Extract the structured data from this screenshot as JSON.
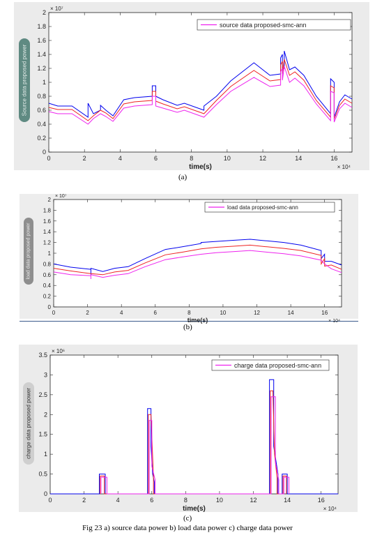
{
  "figure_caption": "Fig 23 a) source data power b) load data power c) charge data power",
  "chart_data": [
    {
      "type": "line",
      "panel_label": "(a)",
      "xlabel": "time(s)",
      "ylabel": "Source data proposed power",
      "x_exponent": "× 10⁴",
      "y_exponent": "× 10⁷",
      "xlim": [
        0,
        17
      ],
      "ylim": [
        0,
        2
      ],
      "xticks": [
        0,
        2,
        4,
        6,
        8,
        10,
        12,
        14,
        16
      ],
      "yticks": [
        0,
        0.2,
        0.4,
        0.6,
        0.8,
        1,
        1.2,
        1.4,
        1.6,
        1.8,
        2
      ],
      "legend": [
        "source data proposed-smc-ann"
      ],
      "legend_position": "top-right",
      "series": [
        {
          "name": "",
          "color": "#0000ee",
          "x": [
            0,
            0.5,
            1.3,
            2.2,
            2.2,
            2.5,
            2.9,
            2.9,
            3.2,
            3.6,
            4.2,
            4.8,
            5.8,
            5.8,
            6.0,
            6.0,
            6.4,
            7.2,
            7.6,
            8.7,
            8.7,
            9.4,
            10.2,
            11.5,
            12.4,
            13.0,
            13.0,
            13.1,
            13.1,
            13.2,
            13.2,
            13.5,
            13.8,
            14.3,
            15.0,
            15.8,
            15.8,
            16.0,
            16.0,
            16.3,
            16.6,
            17
          ],
          "y": [
            0.7,
            0.66,
            0.66,
            0.5,
            0.7,
            0.55,
            0.6,
            0.67,
            0.6,
            0.52,
            0.75,
            0.78,
            0.8,
            0.95,
            0.95,
            0.8,
            0.75,
            0.67,
            0.7,
            0.6,
            0.66,
            0.8,
            1.02,
            1.28,
            1.1,
            1.12,
            1.35,
            1.4,
            1.2,
            1.2,
            1.45,
            1.18,
            1.22,
            1.1,
            0.8,
            0.55,
            1.05,
            1.0,
            0.5,
            0.72,
            0.82,
            0.76
          ]
        },
        {
          "name": "",
          "color": "#ee2222",
          "x": [
            0,
            0.5,
            1.3,
            2.2,
            2.5,
            2.9,
            3.2,
            3.6,
            4.2,
            4.8,
            5.8,
            5.8,
            6.0,
            6.0,
            6.4,
            7.2,
            7.6,
            8.7,
            9.4,
            10.2,
            11.5,
            12.4,
            13.0,
            13.0,
            13.1,
            13.1,
            13.2,
            13.5,
            13.8,
            14.3,
            15.0,
            15.8,
            15.8,
            16.0,
            16.0,
            16.3,
            16.6,
            17
          ],
          "y": [
            0.64,
            0.61,
            0.61,
            0.45,
            0.52,
            0.6,
            0.56,
            0.48,
            0.69,
            0.72,
            0.74,
            0.87,
            0.87,
            0.73,
            0.69,
            0.62,
            0.65,
            0.55,
            0.74,
            0.94,
            1.17,
            1.02,
            1.04,
            1.25,
            1.3,
            1.12,
            1.33,
            1.1,
            1.15,
            1.03,
            0.74,
            0.5,
            0.95,
            0.92,
            0.47,
            0.67,
            0.76,
            0.7
          ]
        },
        {
          "name": "",
          "color": "#ee22ee",
          "x": [
            0,
            0.5,
            1.3,
            2.2,
            2.5,
            2.9,
            3.2,
            3.6,
            4.2,
            4.8,
            5.8,
            5.8,
            6.0,
            6.0,
            6.4,
            7.2,
            7.6,
            8.7,
            9.4,
            10.2,
            11.5,
            12.4,
            13.0,
            13.0,
            13.1,
            13.1,
            13.2,
            13.5,
            13.8,
            14.3,
            15.0,
            15.8,
            15.8,
            16.0,
            16.0,
            16.3,
            16.6,
            17
          ],
          "y": [
            0.58,
            0.55,
            0.55,
            0.4,
            0.48,
            0.55,
            0.51,
            0.44,
            0.63,
            0.66,
            0.68,
            0.8,
            0.8,
            0.66,
            0.63,
            0.57,
            0.6,
            0.5,
            0.68,
            0.87,
            1.07,
            0.94,
            0.96,
            1.15,
            1.2,
            1.03,
            1.23,
            1.0,
            1.06,
            0.95,
            0.69,
            0.45,
            0.87,
            0.85,
            0.43,
            0.62,
            0.7,
            0.64
          ]
        }
      ]
    },
    {
      "type": "line",
      "panel_label": "(b)",
      "xlabel": "time(s)",
      "ylabel": "load data proposed power",
      "x_exponent": "× 10⁴",
      "y_exponent": "× 10⁷",
      "xlim": [
        0,
        17
      ],
      "ylim": [
        0,
        2
      ],
      "xticks": [
        0,
        2,
        4,
        6,
        8,
        10,
        12,
        14,
        16
      ],
      "yticks": [
        0,
        0.2,
        0.4,
        0.6,
        0.8,
        1,
        1.2,
        1.4,
        1.6,
        1.8,
        2
      ],
      "legend": [
        "load data proposed-smc-ann"
      ],
      "legend_position": "top-right",
      "series": [
        {
          "name": "",
          "color": "#0000ee",
          "x": [
            0,
            1.0,
            2.2,
            2.2,
            2.2,
            2.9,
            3.6,
            4.4,
            5.4,
            6.6,
            7.6,
            8.7,
            8.7,
            9.6,
            10.6,
            11.6,
            12.6,
            13.6,
            14.6,
            15.8,
            15.8,
            16.0,
            16.0,
            16.4,
            17
          ],
          "y": [
            0.8,
            0.74,
            0.7,
            0.6,
            0.72,
            0.66,
            0.72,
            0.75,
            0.9,
            1.07,
            1.12,
            1.18,
            1.2,
            1.22,
            1.24,
            1.26,
            1.23,
            1.2,
            1.15,
            1.05,
            0.9,
            0.98,
            0.85,
            0.85,
            0.78
          ]
        },
        {
          "name": "",
          "color": "#ee2222",
          "x": [
            0,
            1.0,
            2.2,
            2.9,
            3.6,
            4.4,
            5.4,
            6.6,
            7.6,
            8.7,
            9.6,
            10.6,
            11.6,
            12.6,
            13.6,
            14.6,
            15.8,
            15.8,
            16.0,
            16.0,
            16.4,
            17
          ],
          "y": [
            0.72,
            0.67,
            0.62,
            0.6,
            0.65,
            0.68,
            0.82,
            0.97,
            1.02,
            1.08,
            1.11,
            1.13,
            1.15,
            1.12,
            1.09,
            1.05,
            0.96,
            0.8,
            0.9,
            0.76,
            0.78,
            0.7
          ]
        },
        {
          "name": "",
          "color": "#ee22ee",
          "x": [
            0,
            1.0,
            2.2,
            2.2,
            2.2,
            2.9,
            3.6,
            4.4,
            5.4,
            6.6,
            7.6,
            8.7,
            9.6,
            10.6,
            11.6,
            12.6,
            13.6,
            14.6,
            15.8,
            16.0,
            16.4,
            17
          ],
          "y": [
            0.65,
            0.6,
            0.58,
            0.52,
            0.6,
            0.55,
            0.59,
            0.62,
            0.75,
            0.88,
            0.93,
            0.98,
            1.01,
            1.03,
            1.05,
            1.02,
            0.99,
            0.95,
            0.87,
            0.8,
            0.71,
            0.64
          ]
        }
      ]
    },
    {
      "type": "line",
      "panel_label": "(c)",
      "xlabel": "time(s)",
      "ylabel": "charge data proposed power",
      "x_exponent": "× 10⁴",
      "y_exponent": "× 10⁶",
      "xlim": [
        0,
        17
      ],
      "ylim": [
        0,
        3.5
      ],
      "xticks": [
        0,
        2,
        4,
        6,
        8,
        10,
        12,
        14,
        16
      ],
      "yticks": [
        0,
        0.5,
        1,
        1.5,
        2,
        2.5,
        3,
        3.5
      ],
      "legend": [
        "charge data proposed-smc-ann"
      ],
      "legend_position": "top-right",
      "series": [
        {
          "name": "",
          "color": "#0000ee",
          "x": [
            0,
            2.9,
            2.9,
            3.25,
            3.25,
            5.75,
            5.75,
            5.95,
            5.95,
            6.05,
            6.1,
            6.15,
            6.15,
            12.95,
            12.95,
            13.2,
            13.2,
            13.45,
            13.45,
            13.7,
            13.7,
            14.0,
            14.0,
            17
          ],
          "y": [
            0,
            0,
            0.5,
            0.5,
            0,
            0,
            2.15,
            2.15,
            1.2,
            0.5,
            0.4,
            0.3,
            0,
            0,
            2.88,
            2.88,
            1.2,
            0.5,
            0,
            0,
            0.5,
            0.5,
            0,
            0
          ]
        },
        {
          "name": "",
          "color": "#ee2222",
          "x": [
            2.95,
            2.95,
            3.2,
            3.2,
            5.8,
            5.8,
            5.95,
            6.1,
            6.1,
            13.0,
            13.0,
            13.15,
            13.25,
            13.4,
            13.4,
            13.75,
            13.75,
            13.95,
            13.95
          ],
          "y": [
            0,
            0.45,
            0.45,
            0,
            0,
            2.0,
            2.0,
            0.4,
            0,
            0,
            2.6,
            2.6,
            1.0,
            0.4,
            0,
            0,
            0.45,
            0.45,
            0
          ]
        },
        {
          "name": "",
          "color": "#ee22ee",
          "x": [
            3.0,
            3.0,
            3.35,
            3.35,
            5.85,
            5.85,
            6.0,
            6.0,
            6.2,
            6.2,
            13.05,
            13.05,
            13.3,
            13.3,
            13.5,
            13.5,
            13.8,
            13.8,
            14.1,
            14.1
          ],
          "y": [
            0,
            0.42,
            0.42,
            0,
            0,
            1.85,
            1.85,
            0.7,
            0.35,
            0,
            0,
            2.45,
            2.45,
            0.8,
            0.35,
            0,
            0,
            0.42,
            0.42,
            0
          ]
        }
      ]
    }
  ]
}
